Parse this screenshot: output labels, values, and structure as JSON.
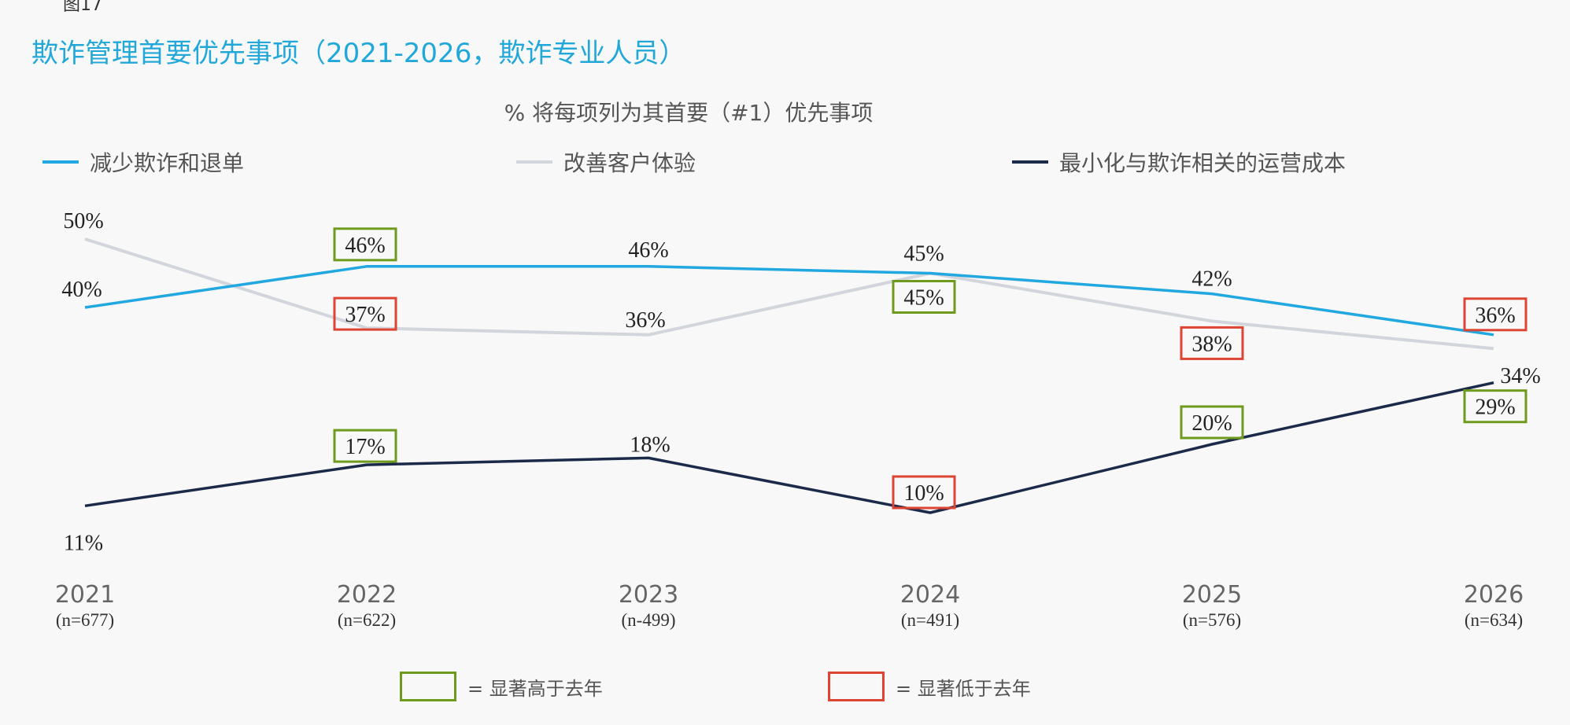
{
  "figure_label": "图17",
  "colors": {
    "series1": "#22a8e0",
    "series2": "#d2d6dc",
    "series3": "#1c2a4a",
    "higher": "#6e9a1e",
    "lower": "#dd4433"
  },
  "legend_key": {
    "higher_label": "= 显著高于去年",
    "lower_label": "= 显著低于去年"
  },
  "chart_data": {
    "type": "line",
    "title": "欺诈管理首要优先事项（2021-2026，欺诈专业人员）",
    "subtitle": "% 将每项列为其首要（#1）优先事项",
    "x": [
      "2021",
      "2022",
      "2023",
      "2024",
      "2025",
      "2026"
    ],
    "x_sublabels": [
      "(n=677)",
      "(n=622)",
      "(n-499)",
      "(n=491)",
      "(n=576)",
      "(n=634)"
    ],
    "ylim": [
      0,
      60
    ],
    "grid": false,
    "legend_position": "top",
    "series": [
      {
        "name": "减少欺诈和退单",
        "values": [
          40,
          46,
          46,
          45,
          42,
          36
        ],
        "labels": [
          "40%",
          "46%",
          "46%",
          "45%",
          "42%",
          "36%"
        ],
        "significance": [
          "none",
          "higher",
          "none",
          "none",
          "none",
          "lower"
        ]
      },
      {
        "name": "改善客户体验",
        "values": [
          50,
          37,
          36,
          45,
          38,
          34
        ],
        "labels": [
          "50%",
          "37%",
          "36%",
          "45%",
          "38%",
          "34%"
        ],
        "significance": [
          "none",
          "lower",
          "none",
          "higher",
          "lower",
          "none"
        ]
      },
      {
        "name": "最小化与欺诈相关的运营成本",
        "values": [
          11,
          17,
          18,
          10,
          20,
          29
        ],
        "labels": [
          "11%",
          "17%",
          "18%",
          "10%",
          "20%",
          "29%"
        ],
        "significance": [
          "none",
          "higher",
          "none",
          "lower",
          "higher",
          "higher"
        ]
      }
    ]
  }
}
